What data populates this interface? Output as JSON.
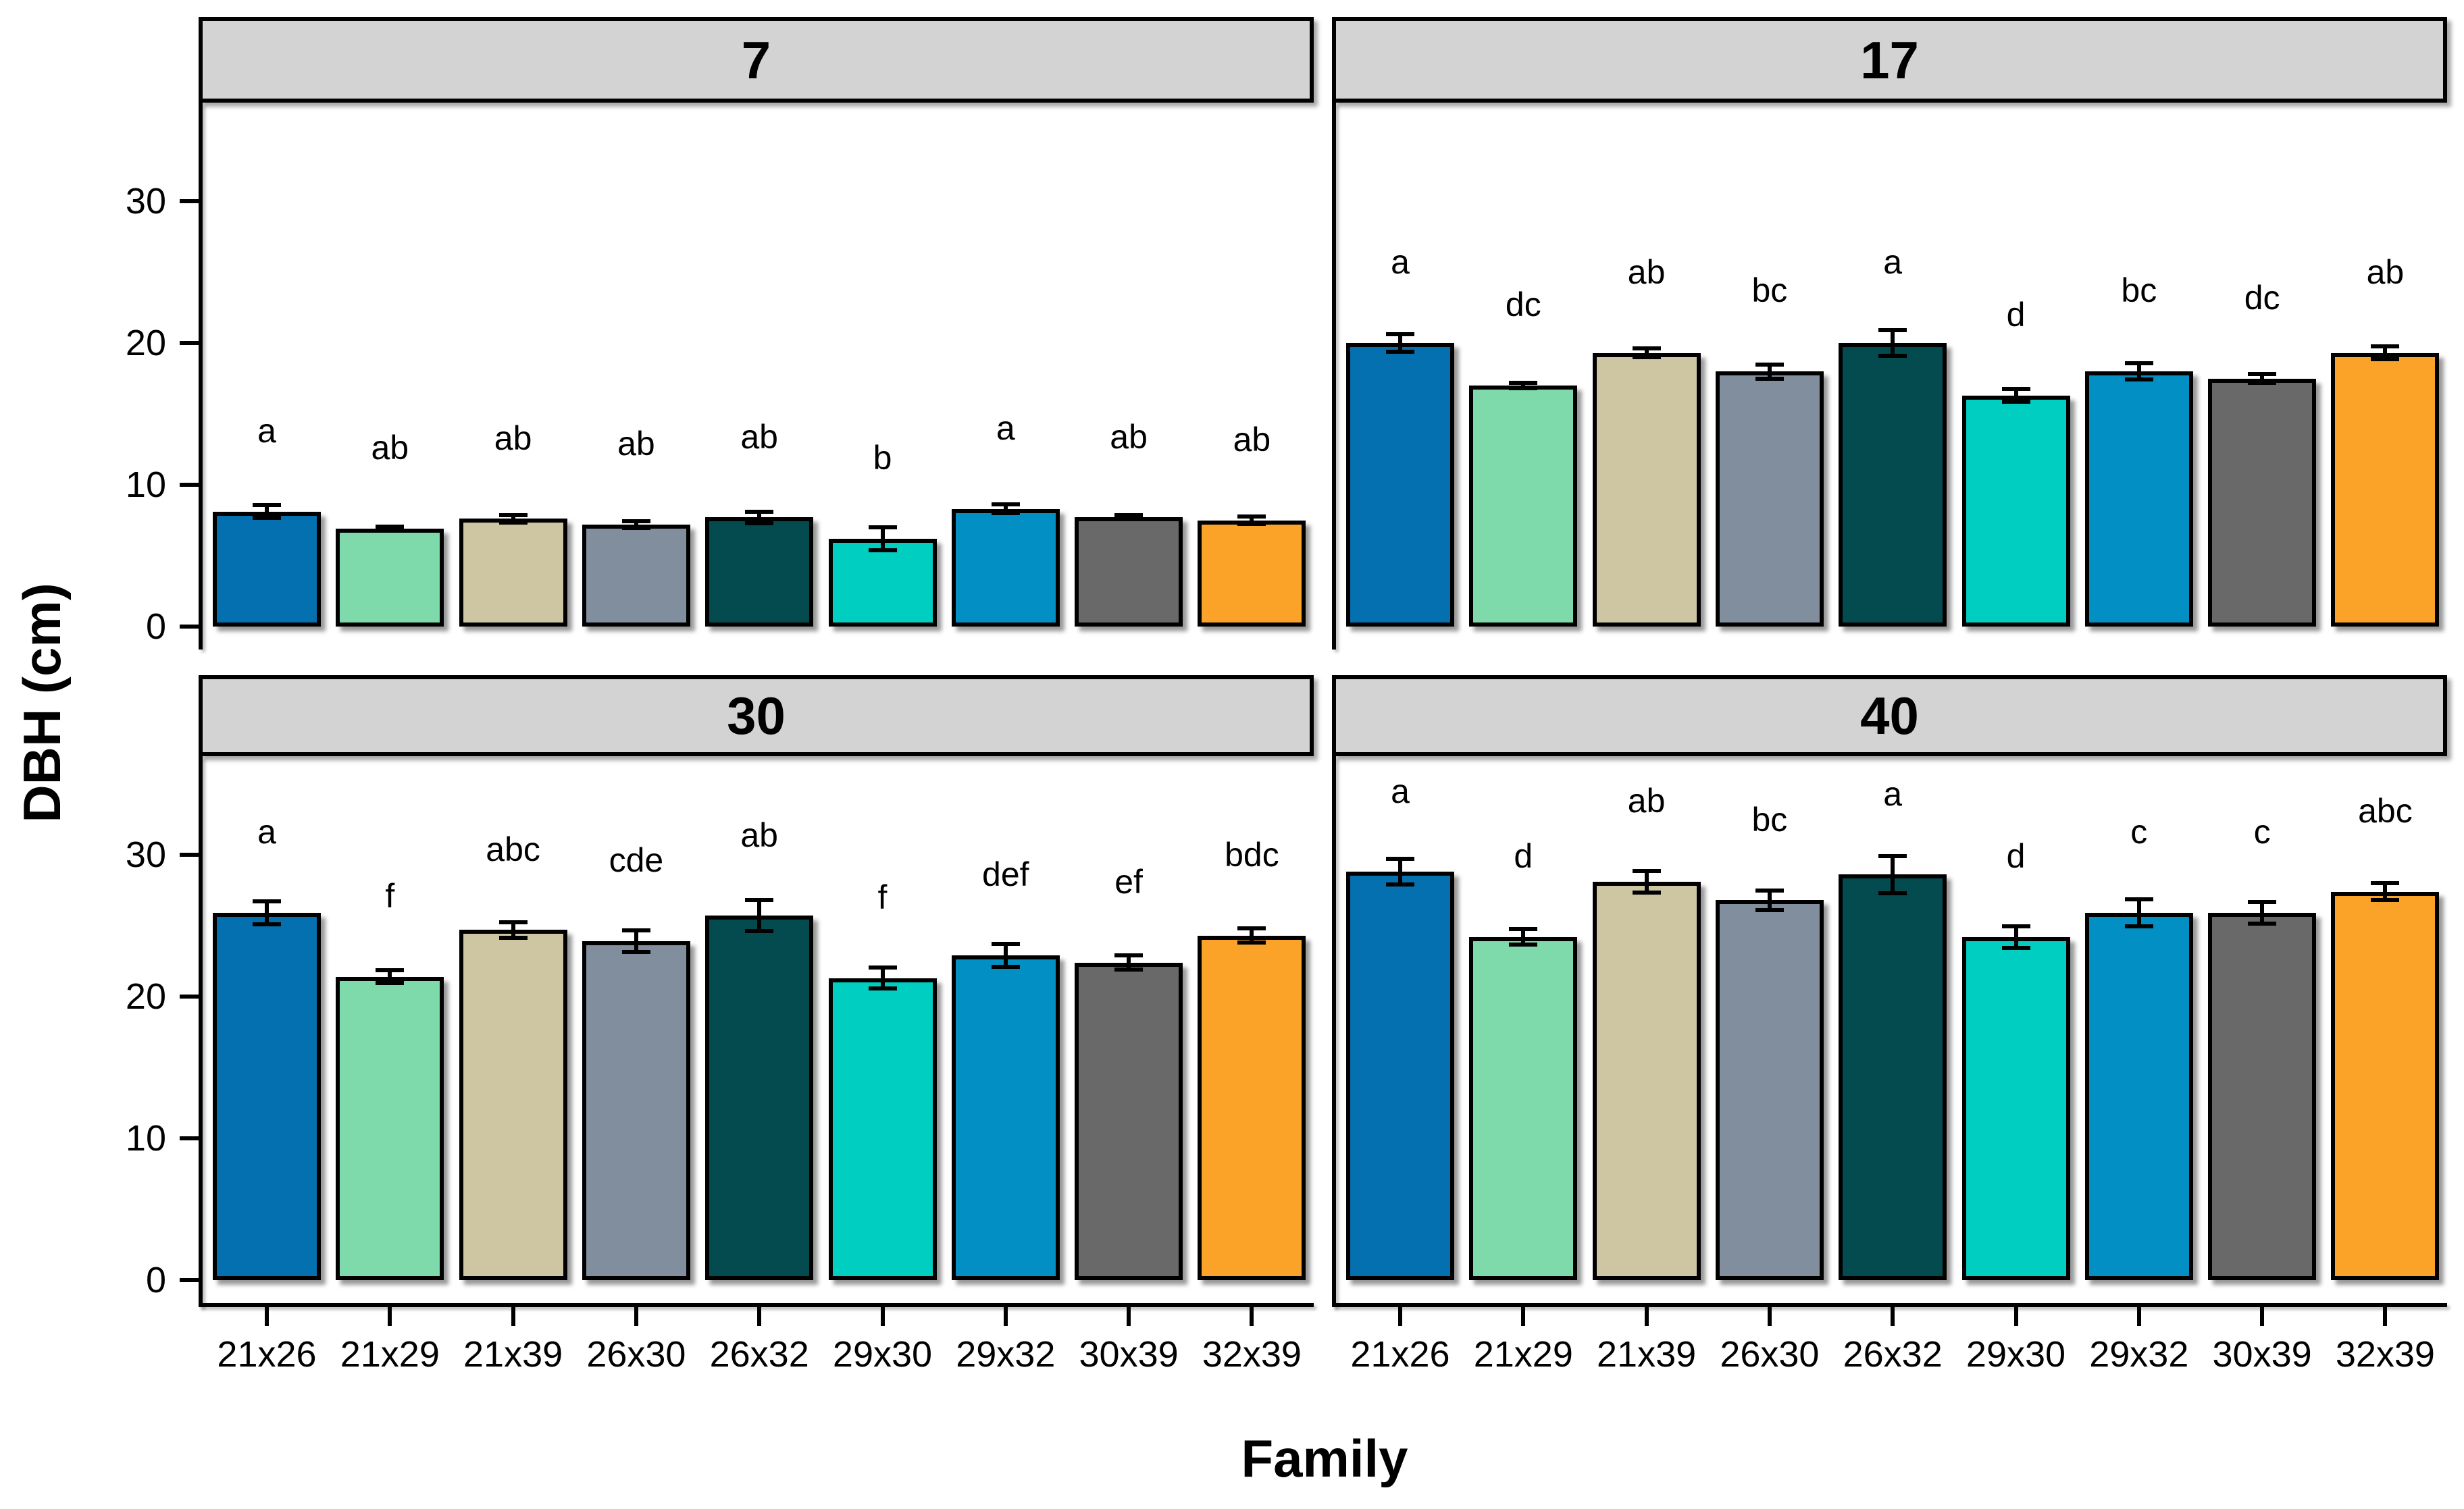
{
  "figure": {
    "ylabel": "DBH (cm)",
    "xlabel": "Family"
  },
  "style": {
    "background": "#ffffff",
    "strip_fill": "#d3d3d3",
    "strip_border": "#000000",
    "bar_border": "#000000",
    "text_color": "#000000"
  },
  "chart_data": {
    "type": "bar",
    "title": "",
    "xlabel": "Family",
    "ylabel": "DBH (cm)",
    "categories": [
      "21x26",
      "21x29",
      "21x39",
      "26x30",
      "26x32",
      "29x30",
      "29x32",
      "30x39",
      "32x39"
    ],
    "bar_colors": [
      "#0570b0",
      "#7ed9ab",
      "#cec5a3",
      "#808e9e",
      "#034b4e",
      "#00cec0",
      "#018fc4",
      "#696969",
      "#fba229"
    ],
    "yticks": [
      "0",
      "10",
      "20",
      "30"
    ],
    "ylim": [
      0,
      37
    ],
    "grid": false,
    "legend": "none",
    "error_bars": true,
    "facet_layout": "2x2",
    "facets": [
      {
        "label": "7",
        "values": [
          8.1,
          6.9,
          7.6,
          7.2,
          7.7,
          6.2,
          8.3,
          7.7,
          7.5
        ],
        "errors": [
          0.45,
          0.15,
          0.25,
          0.25,
          0.4,
          0.8,
          0.3,
          0.15,
          0.25
        ],
        "sig_letters": [
          "a",
          "ab",
          "ab",
          "ab",
          "ab",
          "b",
          "a",
          "ab",
          "ab"
        ]
      },
      {
        "label": "17",
        "values": [
          20.0,
          17.0,
          19.3,
          18.0,
          20.0,
          16.3,
          18.0,
          17.5,
          19.3
        ],
        "errors": [
          0.6,
          0.2,
          0.3,
          0.5,
          0.9,
          0.45,
          0.55,
          0.3,
          0.45
        ],
        "sig_letters": [
          "a",
          "dc",
          "ab",
          "bc",
          "a",
          "d",
          "bc",
          "dc",
          "ab"
        ]
      },
      {
        "label": "30",
        "values": [
          25.9,
          21.4,
          24.7,
          23.9,
          25.7,
          21.3,
          22.9,
          22.4,
          24.3
        ],
        "errors": [
          0.8,
          0.45,
          0.55,
          0.75,
          1.1,
          0.75,
          0.8,
          0.5,
          0.5
        ],
        "sig_letters": [
          "a",
          "f",
          "abc",
          "cde",
          "ab",
          "f",
          "def",
          "ef",
          "bdc"
        ]
      },
      {
        "label": "40",
        "values": [
          28.8,
          24.2,
          28.1,
          26.8,
          28.6,
          24.2,
          25.9,
          25.9,
          27.4
        ],
        "errors": [
          0.9,
          0.55,
          0.75,
          0.7,
          1.3,
          0.75,
          0.95,
          0.75,
          0.6
        ],
        "sig_letters": [
          "a",
          "d",
          "ab",
          "bc",
          "a",
          "d",
          "c",
          "c",
          "abc"
        ]
      }
    ]
  }
}
